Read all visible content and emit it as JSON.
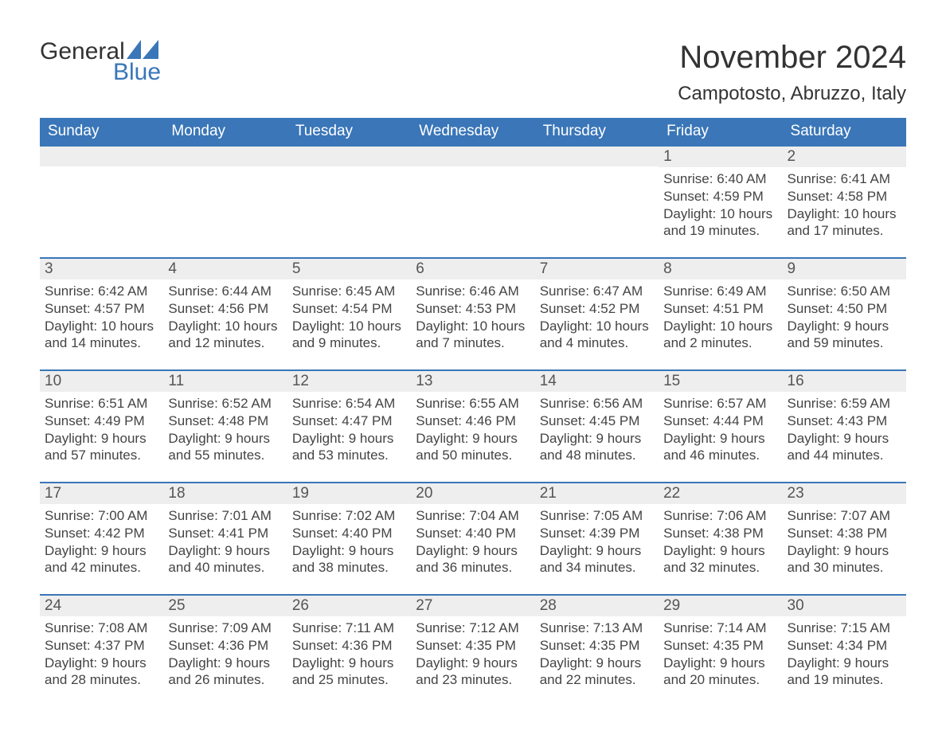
{
  "brand": {
    "top": "General",
    "bottom": "Blue"
  },
  "title": "November 2024",
  "subtitle": "Campotosto, Abruzzo, Italy",
  "colors": {
    "header_bg": "#3a76b8",
    "header_text": "#ffffff",
    "row_border": "#3a76b8",
    "daynum_bg": "#eeeeee",
    "daynum_text": "#555555",
    "body_text": "#444444",
    "page_bg": "#ffffff",
    "logo_blue": "#3a76b8",
    "logo_dark": "#333333"
  },
  "typography": {
    "title_fontsize": 40,
    "subtitle_fontsize": 24,
    "dayhead_fontsize": 19,
    "daynum_fontsize": 19,
    "body_fontsize": 17
  },
  "layout": {
    "columns": 7,
    "rows": 5,
    "leading_blanks": 5
  },
  "day_names": [
    "Sunday",
    "Monday",
    "Tuesday",
    "Wednesday",
    "Thursday",
    "Friday",
    "Saturday"
  ],
  "days": [
    {
      "n": 1,
      "sunrise": "6:40 AM",
      "sunset": "4:59 PM",
      "daylight": "10 hours and 19 minutes."
    },
    {
      "n": 2,
      "sunrise": "6:41 AM",
      "sunset": "4:58 PM",
      "daylight": "10 hours and 17 minutes."
    },
    {
      "n": 3,
      "sunrise": "6:42 AM",
      "sunset": "4:57 PM",
      "daylight": "10 hours and 14 minutes."
    },
    {
      "n": 4,
      "sunrise": "6:44 AM",
      "sunset": "4:56 PM",
      "daylight": "10 hours and 12 minutes."
    },
    {
      "n": 5,
      "sunrise": "6:45 AM",
      "sunset": "4:54 PM",
      "daylight": "10 hours and 9 minutes."
    },
    {
      "n": 6,
      "sunrise": "6:46 AM",
      "sunset": "4:53 PM",
      "daylight": "10 hours and 7 minutes."
    },
    {
      "n": 7,
      "sunrise": "6:47 AM",
      "sunset": "4:52 PM",
      "daylight": "10 hours and 4 minutes."
    },
    {
      "n": 8,
      "sunrise": "6:49 AM",
      "sunset": "4:51 PM",
      "daylight": "10 hours and 2 minutes."
    },
    {
      "n": 9,
      "sunrise": "6:50 AM",
      "sunset": "4:50 PM",
      "daylight": "9 hours and 59 minutes."
    },
    {
      "n": 10,
      "sunrise": "6:51 AM",
      "sunset": "4:49 PM",
      "daylight": "9 hours and 57 minutes."
    },
    {
      "n": 11,
      "sunrise": "6:52 AM",
      "sunset": "4:48 PM",
      "daylight": "9 hours and 55 minutes."
    },
    {
      "n": 12,
      "sunrise": "6:54 AM",
      "sunset": "4:47 PM",
      "daylight": "9 hours and 53 minutes."
    },
    {
      "n": 13,
      "sunrise": "6:55 AM",
      "sunset": "4:46 PM",
      "daylight": "9 hours and 50 minutes."
    },
    {
      "n": 14,
      "sunrise": "6:56 AM",
      "sunset": "4:45 PM",
      "daylight": "9 hours and 48 minutes."
    },
    {
      "n": 15,
      "sunrise": "6:57 AM",
      "sunset": "4:44 PM",
      "daylight": "9 hours and 46 minutes."
    },
    {
      "n": 16,
      "sunrise": "6:59 AM",
      "sunset": "4:43 PM",
      "daylight": "9 hours and 44 minutes."
    },
    {
      "n": 17,
      "sunrise": "7:00 AM",
      "sunset": "4:42 PM",
      "daylight": "9 hours and 42 minutes."
    },
    {
      "n": 18,
      "sunrise": "7:01 AM",
      "sunset": "4:41 PM",
      "daylight": "9 hours and 40 minutes."
    },
    {
      "n": 19,
      "sunrise": "7:02 AM",
      "sunset": "4:40 PM",
      "daylight": "9 hours and 38 minutes."
    },
    {
      "n": 20,
      "sunrise": "7:04 AM",
      "sunset": "4:40 PM",
      "daylight": "9 hours and 36 minutes."
    },
    {
      "n": 21,
      "sunrise": "7:05 AM",
      "sunset": "4:39 PM",
      "daylight": "9 hours and 34 minutes."
    },
    {
      "n": 22,
      "sunrise": "7:06 AM",
      "sunset": "4:38 PM",
      "daylight": "9 hours and 32 minutes."
    },
    {
      "n": 23,
      "sunrise": "7:07 AM",
      "sunset": "4:38 PM",
      "daylight": "9 hours and 30 minutes."
    },
    {
      "n": 24,
      "sunrise": "7:08 AM",
      "sunset": "4:37 PM",
      "daylight": "9 hours and 28 minutes."
    },
    {
      "n": 25,
      "sunrise": "7:09 AM",
      "sunset": "4:36 PM",
      "daylight": "9 hours and 26 minutes."
    },
    {
      "n": 26,
      "sunrise": "7:11 AM",
      "sunset": "4:36 PM",
      "daylight": "9 hours and 25 minutes."
    },
    {
      "n": 27,
      "sunrise": "7:12 AM",
      "sunset": "4:35 PM",
      "daylight": "9 hours and 23 minutes."
    },
    {
      "n": 28,
      "sunrise": "7:13 AM",
      "sunset": "4:35 PM",
      "daylight": "9 hours and 22 minutes."
    },
    {
      "n": 29,
      "sunrise": "7:14 AM",
      "sunset": "4:35 PM",
      "daylight": "9 hours and 20 minutes."
    },
    {
      "n": 30,
      "sunrise": "7:15 AM",
      "sunset": "4:34 PM",
      "daylight": "9 hours and 19 minutes."
    }
  ],
  "labels": {
    "sunrise": "Sunrise:",
    "sunset": "Sunset:",
    "daylight": "Daylight:"
  }
}
